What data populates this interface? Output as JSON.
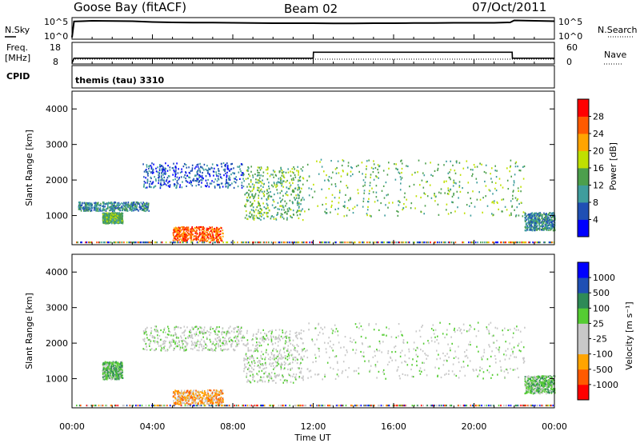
{
  "header": {
    "station": "Goose Bay (fitACF)",
    "beam": "Beam 02",
    "date": "07/Oct/2011"
  },
  "noise_panel": {
    "left_label": "N.Sky",
    "right_label": "N.Search",
    "left_ticks": [
      "10^5",
      "10^0"
    ],
    "right_ticks": [
      "10^5",
      "10^0"
    ],
    "series": [
      {
        "name": "N.Sky",
        "t": [
          0,
          0.1,
          0.5,
          1,
          2,
          3,
          4,
          5,
          6,
          7,
          8,
          9,
          10,
          11,
          12,
          13,
          14,
          15,
          16,
          17,
          18,
          19,
          20,
          21,
          21.8,
          22,
          23,
          24
        ],
        "v": [
          0.05,
          0.85,
          0.86,
          0.88,
          0.87,
          0.86,
          0.82,
          0.8,
          0.79,
          0.79,
          0.78,
          0.77,
          0.76,
          0.76,
          0.76,
          0.75,
          0.75,
          0.76,
          0.76,
          0.77,
          0.77,
          0.78,
          0.78,
          0.78,
          0.8,
          0.9,
          0.88,
          0.86
        ]
      }
    ]
  },
  "freq_panel": {
    "left_label_1": "Freq.",
    "left_label_2": "[MHz]",
    "left_ticks": [
      "18",
      "8"
    ],
    "right_label": "Nave",
    "right_ticks": [
      "60",
      "0"
    ],
    "freq": {
      "t": [
        0,
        0.1,
        12,
        12.01,
        21.9,
        21.91,
        24
      ],
      "v": [
        8,
        10.5,
        10.5,
        13.5,
        13.5,
        10.5,
        10.5
      ]
    }
  },
  "cpid_panel": {
    "label": "CPID",
    "text": "themis (tau) 3310"
  },
  "chart_data": [
    {
      "type": "heatmap",
      "quantity": "Power",
      "ylabel": "Slant Range [km]",
      "xlabel": "Time UT",
      "yticks": [
        1000,
        2000,
        3000,
        4000
      ],
      "ylim": [
        180,
        4500
      ],
      "xlim": [
        0,
        24
      ],
      "colorbar_label": "Power [dB]",
      "colorbar_ticks": [
        "4",
        "8",
        "12",
        "16",
        "20",
        "24",
        "28"
      ],
      "colorbar_colors": [
        "#0000ff",
        "#1f4fb4",
        "#3f9d9d",
        "#4c9f4c",
        "#bfe000",
        "#ffa400",
        "#ff5a00",
        "#ff0000"
      ],
      "regions": [
        {
          "t": [
            0.3,
            3.8
          ],
          "r": [
            1150,
            1400
          ],
          "level": 2
        },
        {
          "t": [
            1.5,
            2.5
          ],
          "r": [
            800,
            1100
          ],
          "level": 3
        },
        {
          "t": [
            3.5,
            8.5
          ],
          "r": [
            1800,
            2500
          ],
          "level": 1
        },
        {
          "t": [
            5.0,
            7.5
          ],
          "r": [
            300,
            700
          ],
          "level": 6
        },
        {
          "t": [
            8.5,
            11.5
          ],
          "r": [
            900,
            2400
          ],
          "level": 3
        },
        {
          "t": [
            11.5,
            22.5
          ],
          "r": [
            1000,
            2600
          ],
          "level": 3
        },
        {
          "t": [
            22.5,
            24
          ],
          "r": [
            600,
            1100
          ],
          "level": 2
        }
      ]
    },
    {
      "type": "heatmap",
      "quantity": "Velocity",
      "ylabel": "Slant Range [km]",
      "xlabel": "Time UT",
      "yticks": [
        1000,
        2000,
        3000,
        4000
      ],
      "ylim": [
        180,
        4500
      ],
      "xlim": [
        0,
        24
      ],
      "colorbar_label": "Velocity [m s⁻¹]",
      "colorbar_ticks": [
        "-1000",
        "-500",
        "-100",
        "-25",
        "25",
        "100",
        "500",
        "1000"
      ],
      "colorbar_colors": [
        "#ff0000",
        "#ff5a00",
        "#ffa400",
        "#c8c8c8",
        "#c8c8c8",
        "#55cc33",
        "#2e8b57",
        "#1f4fb4",
        "#0000ff"
      ],
      "regions": [
        {
          "t": [
            3.5,
            8.5
          ],
          "r": [
            1800,
            2500
          ],
          "level": 4
        },
        {
          "t": [
            5.0,
            7.5
          ],
          "r": [
            300,
            700
          ],
          "level": 2
        },
        {
          "t": [
            8.5,
            11.5
          ],
          "r": [
            900,
            2400
          ],
          "level": 4
        },
        {
          "t": [
            11.5,
            22.5
          ],
          "r": [
            1000,
            2600
          ],
          "level": 4
        },
        {
          "t": [
            1.5,
            2.5
          ],
          "r": [
            1000,
            1500
          ],
          "level": 5
        },
        {
          "t": [
            22.5,
            24
          ],
          "r": [
            600,
            1100
          ],
          "level": 5
        }
      ]
    }
  ],
  "time_axis": {
    "ticks": [
      "00:00",
      "04:00",
      "08:00",
      "12:00",
      "16:00",
      "20:00",
      "00:00"
    ],
    "label": "Time UT"
  }
}
